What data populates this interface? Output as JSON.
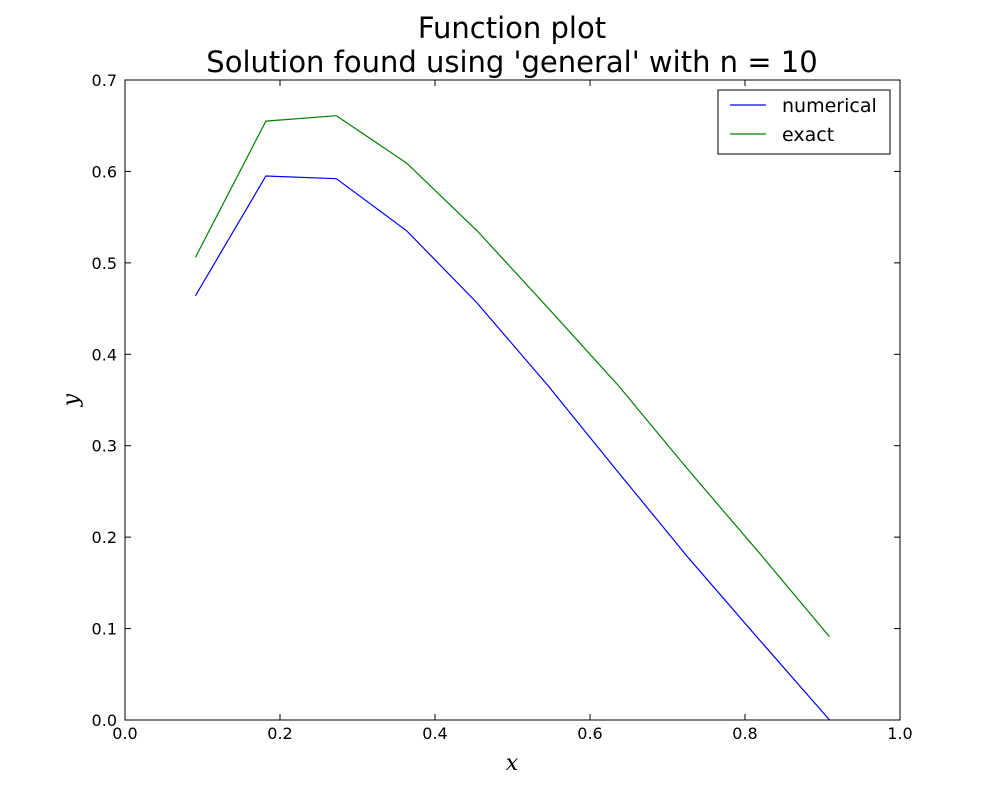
{
  "chart_data": {
    "type": "line",
    "title_line1": "Function plot",
    "title_line2": "Solution found using 'general' with n = 10",
    "xlabel": "x",
    "ylabel": "y",
    "xlim": [
      0.0,
      1.0
    ],
    "ylim": [
      0.0,
      0.7
    ],
    "xticks": [
      "0.0",
      "0.2",
      "0.4",
      "0.6",
      "0.8",
      "1.0"
    ],
    "yticks": [
      "0.0",
      "0.1",
      "0.2",
      "0.3",
      "0.4",
      "0.5",
      "0.6",
      "0.7"
    ],
    "grid": false,
    "legend_position": "top-right",
    "series": [
      {
        "name": "numerical",
        "color": "#0000ff",
        "x": [
          0.0909,
          0.1818,
          0.2727,
          0.3636,
          0.4545,
          0.5455,
          0.6364,
          0.7273,
          0.8182,
          0.9091
        ],
        "y": [
          0.464,
          0.595,
          0.592,
          0.535,
          0.456,
          0.366,
          0.271,
          0.177,
          0.088,
          0.0
        ]
      },
      {
        "name": "exact",
        "color": "#008000",
        "x": [
          0.0909,
          0.1818,
          0.2727,
          0.3636,
          0.4545,
          0.5455,
          0.6364,
          0.7273,
          0.8182,
          0.9091
        ],
        "y": [
          0.506,
          0.655,
          0.661,
          0.609,
          0.535,
          0.451,
          0.366,
          0.273,
          0.183,
          0.091
        ]
      }
    ]
  }
}
